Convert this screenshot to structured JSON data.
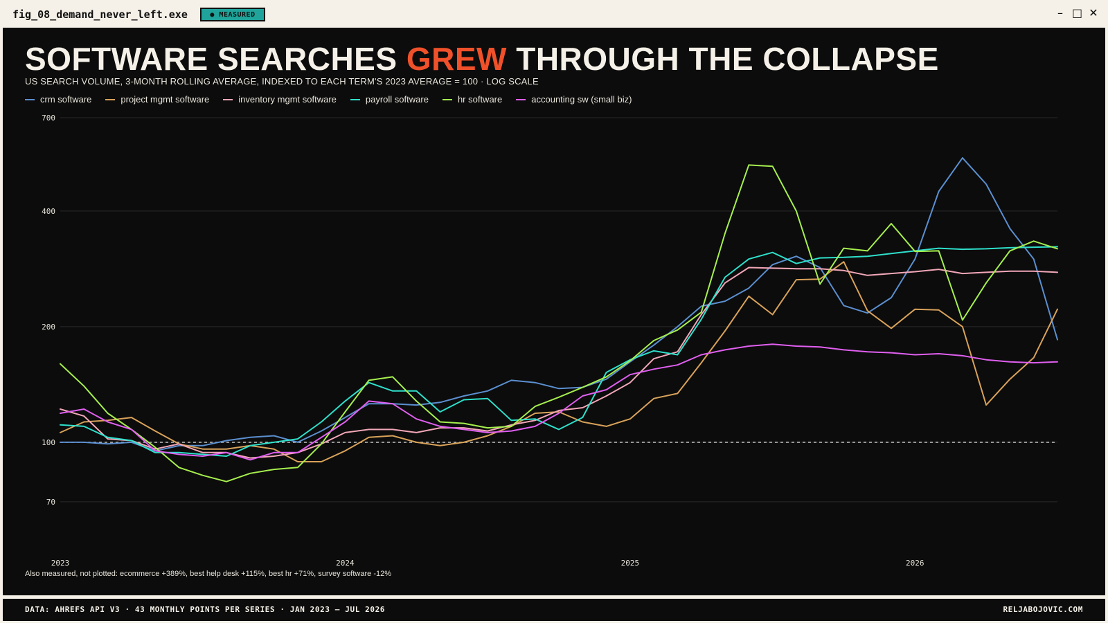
{
  "window": {
    "title": "fig_08_demand_never_left.exe",
    "badge": "● MEASURED",
    "controls": [
      "–",
      "□",
      "✕"
    ]
  },
  "headline": {
    "before": "SOFTWARE SEARCHES ",
    "accent": "GREW",
    "after": " THROUGH THE COLLAPSE",
    "accent_color": "#f0512a"
  },
  "subtitle": "US SEARCH VOLUME, 3-MONTH ROLLING AVERAGE, INDEXED TO EACH TERM'S 2023 AVERAGE = 100 · LOG SCALE",
  "footnote": "Also measured, not plotted: ecommerce +389%, best help desk +115%, best hr +71%, survey software -12%",
  "footer": {
    "left": "DATA: AHREFS API V3 · 43 MONTHLY POINTS PER SERIES · JAN 2023 – JUL 2026",
    "right": "RELJABOJOVIC.COM"
  },
  "chart_data": {
    "type": "line",
    "y_scale": "log",
    "ylim": [
      60,
      700
    ],
    "y_ticks": [
      70,
      100,
      200,
      400,
      700
    ],
    "x_ticks": [
      {
        "label": "2023",
        "x": "2023-01"
      },
      {
        "label": "2024",
        "x": "2024-01"
      },
      {
        "label": "2025",
        "x": "2025-01"
      },
      {
        "label": "2026",
        "x": "2026-01"
      }
    ],
    "x_start": "2023-01",
    "x_end": "2026-07",
    "baseline": 100,
    "grid": true,
    "series": [
      {
        "name": "crm software",
        "color": "#5b8fd0",
        "values": [
          100,
          100,
          99,
          100,
          95,
          98,
          98,
          101,
          103,
          104,
          100,
          107,
          116,
          126,
          126,
          125,
          127,
          132,
          136,
          145,
          143,
          138,
          139,
          146,
          162,
          179,
          200,
          226,
          233,
          252,
          290,
          305,
          285,
          227,
          217,
          238,
          300,
          450,
          550,
          470,
          360,
          300,
          185
        ]
      },
      {
        "name": "project mgmt software",
        "color": "#d9a25a",
        "values": [
          106,
          113,
          114,
          116,
          107,
          99,
          96,
          96,
          98,
          96,
          89,
          89,
          95,
          103,
          104,
          100,
          98,
          100,
          104,
          110,
          119,
          120,
          113,
          110,
          115,
          130,
          134,
          161,
          195,
          240,
          215,
          265,
          266,
          295,
          220,
          198,
          222,
          221,
          200,
          125,
          146,
          166,
          222
        ]
      },
      {
        "name": "inventory mgmt software",
        "color": "#f2a7b8",
        "values": [
          122,
          117,
          102,
          101,
          96,
          99,
          94,
          94,
          91,
          92,
          94,
          99,
          106,
          108,
          108,
          106,
          109,
          109,
          107,
          111,
          114,
          121,
          123,
          132,
          143,
          165,
          172,
          215,
          260,
          285,
          284,
          283,
          283,
          280,
          272,
          275,
          278,
          282,
          275,
          277,
          279,
          279,
          277
        ]
      },
      {
        "name": "payroll software",
        "color": "#2ee0cb",
        "values": [
          111,
          110,
          103,
          101,
          94,
          94,
          93,
          92,
          98,
          100,
          102,
          113,
          128,
          143,
          136,
          136,
          120,
          129,
          130,
          114,
          115,
          108,
          116,
          152,
          164,
          173,
          169,
          209,
          269,
          300,
          312,
          292,
          302,
          303,
          305,
          310,
          315,
          320,
          318,
          319,
          321,
          322,
          323
        ]
      },
      {
        "name": "hr software",
        "color": "#a6ef4e",
        "values": [
          160,
          140,
          119,
          108,
          97,
          86,
          82,
          79,
          83,
          85,
          86,
          99,
          120,
          145,
          148,
          128,
          113,
          112,
          109,
          110,
          124,
          131,
          139,
          148,
          163,
          184,
          196,
          218,
          350,
          527,
          523,
          400,
          258,
          320,
          315,
          371,
          314,
          315,
          208,
          260,
          315,
          334,
          319
        ]
      },
      {
        "name": "accounting sw (small biz)",
        "color": "#e05ff0",
        "values": [
          119,
          122,
          113,
          108,
          95,
          93,
          92,
          94,
          90,
          94,
          94,
          103,
          113,
          128,
          126,
          115,
          110,
          108,
          106,
          107,
          110,
          119,
          132,
          137,
          150,
          155,
          159,
          169,
          174,
          178,
          180,
          178,
          177,
          174,
          172,
          171,
          169,
          170,
          168,
          164,
          162,
          161,
          162
        ]
      }
    ]
  }
}
